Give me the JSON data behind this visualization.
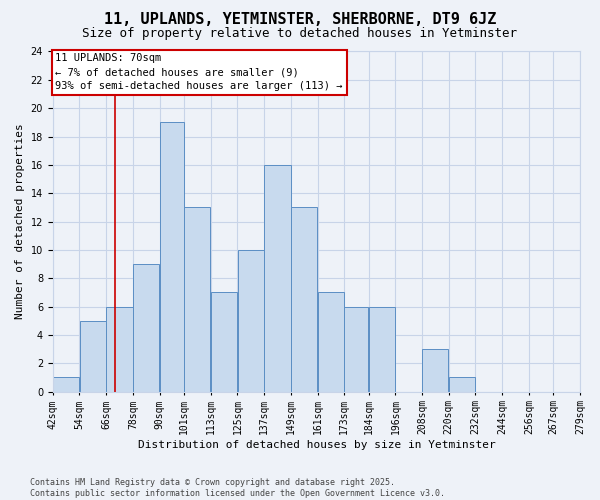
{
  "title": "11, UPLANDS, YETMINSTER, SHERBORNE, DT9 6JZ",
  "subtitle": "Size of property relative to detached houses in Yetminster",
  "xlabel": "Distribution of detached houses by size in Yetminster",
  "ylabel": "Number of detached properties",
  "footer": "Contains HM Land Registry data © Crown copyright and database right 2025.\nContains public sector information licensed under the Open Government Licence v3.0.",
  "bar_labels": [
    "42sqm",
    "54sqm",
    "66sqm",
    "78sqm",
    "90sqm",
    "101sqm",
    "113sqm",
    "125sqm",
    "137sqm",
    "149sqm",
    "161sqm",
    "173sqm",
    "184sqm",
    "196sqm",
    "208sqm",
    "220sqm",
    "232sqm",
    "244sqm",
    "256sqm",
    "267sqm",
    "279sqm"
  ],
  "tick_positions": [
    42,
    54,
    66,
    78,
    90,
    101,
    113,
    125,
    137,
    149,
    161,
    173,
    184,
    196,
    208,
    220,
    232,
    244,
    256,
    267,
    279
  ],
  "values": [
    1,
    5,
    6,
    9,
    19,
    13,
    7,
    10,
    16,
    13,
    7,
    6,
    6,
    0,
    3,
    1,
    0,
    0,
    0,
    0
  ],
  "bar_color": "#c8daee",
  "bar_edge_color": "#5b8ec4",
  "grid_color": "#c8d4e8",
  "background_color": "#eef2f8",
  "plot_background": "#eef2f8",
  "annotation_text": "11 UPLANDS: 70sqm\n← 7% of detached houses are smaller (9)\n93% of semi-detached houses are larger (113) →",
  "annotation_box_color": "white",
  "annotation_box_edge_color": "#cc0000",
  "vline_x": 70,
  "vline_color": "#cc0000",
  "xlim_left": 42,
  "xlim_right": 279,
  "ylim": [
    0,
    24
  ],
  "yticks": [
    0,
    2,
    4,
    6,
    8,
    10,
    12,
    14,
    16,
    18,
    20,
    22,
    24
  ],
  "title_fontsize": 11,
  "subtitle_fontsize": 9,
  "ylabel_fontsize": 8,
  "xlabel_fontsize": 8,
  "tick_fontsize": 7,
  "footer_fontsize": 6,
  "annot_fontsize": 7.5
}
